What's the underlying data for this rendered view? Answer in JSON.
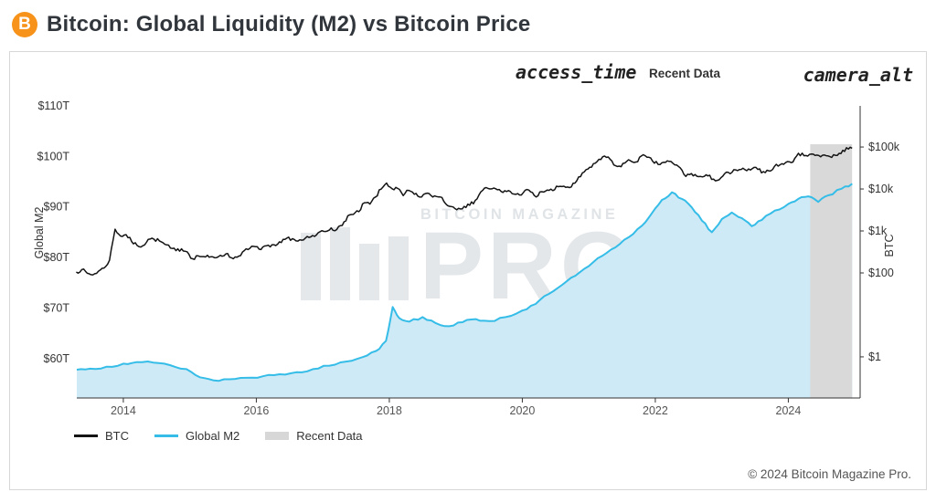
{
  "page": {
    "title": "Bitcoin: Global Liquidity (M2) vs Bitcoin Price",
    "logo_letter": "B",
    "footer": "© 2024 Bitcoin Magazine Pro."
  },
  "toolbar": {
    "time_icon_text": "access_time",
    "recent_data_label": "Recent Data",
    "camera_icon_text": "camera_alt"
  },
  "watermark": {
    "line1": "BITCOIN MAGAZINE",
    "line2": "PRO",
    "reg": "®"
  },
  "chart_data": {
    "type": "line",
    "title": "Bitcoin: Global Liquidity (M2) vs Bitcoin Price",
    "x_range": [
      2013.3,
      2025.08
    ],
    "x_ticks": [
      2014,
      2016,
      2018,
      2020,
      2022,
      2024
    ],
    "left_axis": {
      "label": "Global M2",
      "ticks": [
        "$110T",
        "$100T",
        "$90T",
        "$80T",
        "$70T",
        "$60T"
      ],
      "tick_values": [
        110,
        100,
        90,
        80,
        70,
        60
      ],
      "range": [
        52.2,
        110
      ]
    },
    "right_axis": {
      "label": "BTC",
      "log": true,
      "ticks": [
        "$100k",
        "$10k",
        "$1k",
        "$100",
        "$1"
      ],
      "tick_values": [
        100000,
        10000,
        1000,
        100,
        1
      ],
      "range_log10": [
        -0.98,
        5.98
      ]
    },
    "recent_band": {
      "label": "Recent Data",
      "x0": 2024.33,
      "x1": 2024.96,
      "color": "#d9d9d9"
    },
    "series": [
      {
        "name": "BTC",
        "axis": "right",
        "color": "#141414",
        "x_start": 2013.292,
        "x_step": 0.083333,
        "values": [
          105,
          120,
          98,
          90,
          110,
          130,
          200,
          1100,
          755,
          815,
          560,
          450,
          445,
          630,
          640,
          580,
          480,
          390,
          340,
          375,
          320,
          217,
          255,
          245,
          236,
          230,
          263,
          284,
          230,
          236,
          314,
          360,
          430,
          368,
          437,
          416,
          448,
          531,
          673,
          655,
          575,
          610,
          700,
          742,
          963,
          970,
          1180,
          1080,
          1350,
          2300,
          2480,
          2875,
          4703,
          4360,
          6440,
          9900,
          13850,
          10100,
          10300,
          6940,
          9240,
          7500,
          6400,
          7750,
          7010,
          6625,
          6300,
          4020,
          3740,
          3460,
          3850,
          4105,
          5320,
          8550,
          10820,
          10080,
          9590,
          8300,
          9150,
          7550,
          7195,
          9350,
          8550,
          6440,
          8625,
          9450,
          9135,
          11350,
          11650,
          10780,
          13800,
          19700,
          29000,
          33100,
          45200,
          58800,
          57750,
          37330,
          35040,
          41500,
          47130,
          43790,
          61320,
          57000,
          46200,
          38480,
          43190,
          45540,
          37650,
          31790,
          19925,
          23300,
          20050,
          19430,
          20490,
          17165,
          16550,
          23130,
          23140,
          28470,
          29230,
          27220,
          30480,
          29230,
          25930,
          26960,
          34650,
          37720,
          42280,
          42580,
          61200,
          71330,
          60640,
          67500,
          62680,
          64620,
          58970,
          63330,
          70100,
          96400,
          93400
        ]
      },
      {
        "name": "Global M2",
        "axis": "left",
        "color": "#35bde8",
        "fill": "#cfeaf7",
        "x": [
          2013.3,
          2013.5,
          2013.75,
          2014.0,
          2014.2,
          2014.45,
          2014.7,
          2014.95,
          2015.15,
          2015.35,
          2015.6,
          2015.85,
          2016.1,
          2016.35,
          2016.6,
          2016.85,
          2017.1,
          2017.35,
          2017.6,
          2017.8,
          2017.95,
          2018.05,
          2018.15,
          2018.3,
          2018.5,
          2018.7,
          2018.9,
          2019.1,
          2019.3,
          2019.5,
          2019.75,
          2020.0,
          2020.2,
          2020.4,
          2020.6,
          2020.8,
          2021.0,
          2021.2,
          2021.4,
          2021.6,
          2021.8,
          2021.95,
          2022.1,
          2022.25,
          2022.4,
          2022.55,
          2022.7,
          2022.85,
          2023.0,
          2023.15,
          2023.3,
          2023.45,
          2023.6,
          2023.8,
          2024.0,
          2024.15,
          2024.3,
          2024.45,
          2024.6,
          2024.8,
          2024.96
        ],
        "values": [
          57.8,
          58.0,
          58.4,
          59.0,
          59.3,
          59.2,
          58.7,
          57.9,
          56.3,
          55.7,
          55.9,
          56.2,
          56.5,
          56.9,
          57.3,
          57.9,
          58.6,
          59.4,
          60.3,
          61.5,
          63.5,
          70.2,
          68.0,
          67.3,
          68.2,
          67.0,
          66.4,
          67.2,
          67.8,
          67.4,
          68.2,
          69.5,
          70.8,
          72.8,
          74.6,
          76.4,
          78.3,
          80.3,
          82.0,
          84.0,
          86.3,
          88.8,
          91.4,
          92.9,
          91.6,
          89.9,
          87.3,
          85.0,
          87.6,
          88.9,
          87.8,
          86.2,
          87.4,
          89.3,
          90.6,
          91.6,
          92.1,
          91.0,
          92.3,
          93.6,
          94.6
        ]
      }
    ],
    "legend": [
      {
        "label": "BTC",
        "color": "#141414"
      },
      {
        "label": "Global M2",
        "color": "#35bde8"
      },
      {
        "label": "Recent Data",
        "color": "#d7d7d7"
      }
    ]
  }
}
